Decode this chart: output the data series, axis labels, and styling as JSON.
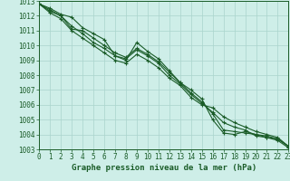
{
  "title": "Graphe pression niveau de la mer (hPa)",
  "xlim": [
    0,
    23
  ],
  "ylim": [
    1003,
    1013
  ],
  "xticks": [
    0,
    1,
    2,
    3,
    4,
    5,
    6,
    7,
    8,
    9,
    10,
    11,
    12,
    13,
    14,
    15,
    16,
    17,
    18,
    19,
    20,
    21,
    22,
    23
  ],
  "yticks": [
    1003,
    1004,
    1005,
    1006,
    1007,
    1008,
    1009,
    1010,
    1011,
    1012,
    1013
  ],
  "bg_color": "#ceeee8",
  "grid_color": "#aad4cc",
  "line_color": "#1a5c28",
  "series": [
    [
      1012.8,
      1012.5,
      1012.1,
      1011.9,
      1011.2,
      1010.8,
      1010.4,
      1009.3,
      1009.0,
      1010.2,
      1009.6,
      1009.1,
      1008.3,
      1007.5,
      1007.0,
      1006.4,
      1005.0,
      1004.1,
      1004.0,
      1004.2,
      1004.0,
      1003.9,
      1003.7,
      1003.2
    ],
    [
      1012.8,
      1012.4,
      1012.0,
      1011.1,
      1011.0,
      1010.5,
      1010.0,
      1009.5,
      1009.2,
      1009.8,
      1009.4,
      1008.9,
      1008.2,
      1007.5,
      1006.8,
      1006.2,
      1005.4,
      1004.3,
      1004.2,
      1004.1,
      1004.0,
      1003.8,
      1003.6,
      1003.1
    ],
    [
      1012.8,
      1012.3,
      1012.0,
      1011.3,
      1010.8,
      1010.2,
      1009.8,
      1009.3,
      1009.1,
      1009.7,
      1009.3,
      1008.8,
      1008.0,
      1007.4,
      1006.7,
      1006.1,
      1005.5,
      1004.8,
      1004.5,
      1004.3,
      1003.9,
      1003.8,
      1003.7,
      1003.2
    ],
    [
      1012.8,
      1012.2,
      1011.8,
      1011.0,
      1010.5,
      1010.0,
      1009.5,
      1009.0,
      1008.8,
      1009.4,
      1009.0,
      1008.5,
      1007.8,
      1007.3,
      1006.5,
      1006.0,
      1005.8,
      1005.2,
      1004.8,
      1004.5,
      1004.2,
      1004.0,
      1003.8,
      1003.2
    ]
  ],
  "line_width": 0.8,
  "marker_size": 3.5,
  "tick_fontsize": 5.5,
  "label_fontsize": 6.5
}
